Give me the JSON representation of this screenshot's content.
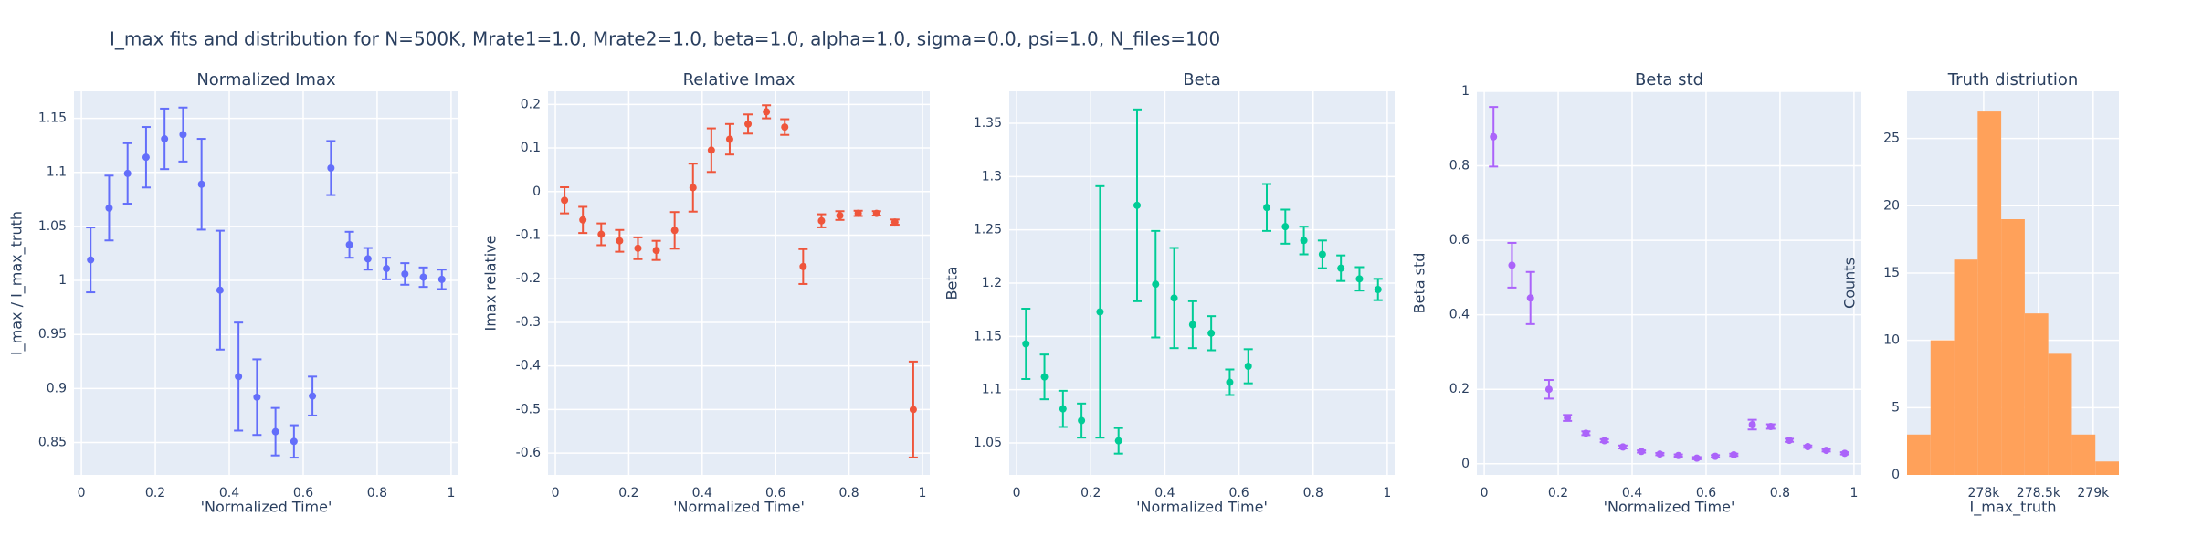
{
  "title": "I_max fits and distribution for N=500K, Mrate1=1.0, Mrate2=1.0, beta=1.0, alpha=1.0, sigma=0.0,  psi=1.0, N_files=100",
  "chart_data": [
    {
      "type": "scatter",
      "title": "Normalized Imax",
      "xlabel": "'Normalized Time'",
      "ylabel": "I_max / I_max_truth",
      "color": "#636efa",
      "x": [
        0.025,
        0.075,
        0.125,
        0.175,
        0.225,
        0.275,
        0.325,
        0.375,
        0.425,
        0.475,
        0.525,
        0.575,
        0.625,
        0.675,
        0.725,
        0.775,
        0.825,
        0.875,
        0.925,
        0.975
      ],
      "values": [
        1.019,
        1.067,
        1.099,
        1.114,
        1.131,
        1.135,
        1.089,
        0.991,
        0.911,
        0.892,
        0.86,
        0.851,
        0.893,
        1.104,
        1.033,
        1.02,
        1.011,
        1.006,
        1.003,
        1.001
      ],
      "error_y": [
        0.03,
        0.03,
        0.028,
        0.028,
        0.028,
        0.025,
        0.042,
        0.055,
        0.05,
        0.035,
        0.022,
        0.015,
        0.018,
        0.025,
        0.012,
        0.01,
        0.01,
        0.01,
        0.009,
        0.009
      ],
      "xlim": [
        -0.02,
        1.02
      ],
      "xticks": [
        0,
        0.2,
        0.4,
        0.6,
        0.8,
        1
      ],
      "ylim": [
        0.82,
        1.175
      ],
      "yticks": [
        0.85,
        0.9,
        0.95,
        1,
        1.05,
        1.1,
        1.15
      ],
      "grid": true
    },
    {
      "type": "scatter",
      "title": "Relative Imax",
      "xlabel": "'Normalized Time'",
      "ylabel": "Imax relative",
      "color": "#EF553B",
      "x": [
        0.025,
        0.075,
        0.125,
        0.175,
        0.225,
        0.275,
        0.325,
        0.375,
        0.425,
        0.475,
        0.525,
        0.575,
        0.625,
        0.675,
        0.725,
        0.775,
        0.825,
        0.875,
        0.925,
        0.975
      ],
      "values": [
        -0.02,
        -0.065,
        -0.098,
        -0.113,
        -0.13,
        -0.135,
        -0.089,
        0.009,
        0.095,
        0.12,
        0.155,
        0.183,
        0.148,
        -0.172,
        -0.067,
        -0.055,
        -0.05,
        -0.05,
        -0.07,
        -0.5
      ],
      "error_y": [
        0.03,
        0.03,
        0.025,
        0.025,
        0.025,
        0.022,
        0.042,
        0.055,
        0.05,
        0.035,
        0.022,
        0.015,
        0.018,
        0.04,
        0.015,
        0.01,
        0.006,
        0.005,
        0.006,
        0.11
      ],
      "xlim": [
        -0.02,
        1.02
      ],
      "xticks": [
        0,
        0.2,
        0.4,
        0.6,
        0.8,
        1
      ],
      "ylim": [
        -0.65,
        0.23
      ],
      "yticks": [
        -0.6,
        -0.5,
        -0.4,
        -0.3,
        -0.2,
        -0.1,
        0,
        0.1,
        0.2
      ],
      "grid": true
    },
    {
      "type": "scatter",
      "title": "Beta",
      "xlabel": "'Normalized Time'",
      "ylabel": "Beta",
      "color": "#00cc96",
      "x": [
        0.025,
        0.075,
        0.125,
        0.175,
        0.225,
        0.275,
        0.325,
        0.375,
        0.425,
        0.475,
        0.525,
        0.575,
        0.625,
        0.675,
        0.725,
        0.775,
        0.825,
        0.875,
        0.925,
        0.975
      ],
      "values": [
        1.143,
        1.112,
        1.082,
        1.071,
        1.173,
        1.052,
        1.273,
        1.199,
        1.186,
        1.161,
        1.153,
        1.107,
        1.122,
        1.271,
        1.253,
        1.24,
        1.227,
        1.214,
        1.204,
        1.194
      ],
      "error_y": [
        0.033,
        0.021,
        0.017,
        0.016,
        0.118,
        0.012,
        0.09,
        0.05,
        0.047,
        0.022,
        0.016,
        0.012,
        0.016,
        0.022,
        0.016,
        0.013,
        0.013,
        0.012,
        0.011,
        0.01
      ],
      "xlim": [
        -0.02,
        1.02
      ],
      "xticks": [
        0,
        0.2,
        0.4,
        0.6,
        0.8,
        1
      ],
      "ylim": [
        1.02,
        1.38
      ],
      "yticks": [
        1.05,
        1.1,
        1.15,
        1.2,
        1.25,
        1.3,
        1.35
      ],
      "grid": true
    },
    {
      "type": "scatter",
      "title": "Beta std",
      "xlabel": "'Normalized Time'",
      "ylabel": "Beta std",
      "color": "#ab63fa",
      "x": [
        0.025,
        0.075,
        0.125,
        0.175,
        0.225,
        0.275,
        0.325,
        0.375,
        0.425,
        0.475,
        0.525,
        0.575,
        0.625,
        0.675,
        0.725,
        0.775,
        0.825,
        0.875,
        0.925,
        0.975
      ],
      "values": [
        0.878,
        0.533,
        0.445,
        0.2,
        0.123,
        0.082,
        0.062,
        0.045,
        0.033,
        0.026,
        0.022,
        0.015,
        0.02,
        0.024,
        0.105,
        0.1,
        0.063,
        0.046,
        0.036,
        0.028
      ],
      "error_y": [
        0.08,
        0.06,
        0.07,
        0.025,
        0.008,
        0.005,
        0.004,
        0.004,
        0.003,
        0.003,
        0.003,
        0.003,
        0.003,
        0.003,
        0.013,
        0.006,
        0.004,
        0.003,
        0.003,
        0.003
      ],
      "xlim": [
        -0.02,
        1.02
      ],
      "xticks": [
        0,
        0.2,
        0.4,
        0.6,
        0.8,
        1
      ],
      "ylim": [
        -0.03,
        1.0
      ],
      "yticks": [
        0,
        0.2,
        0.4,
        0.6,
        0.8,
        1
      ],
      "grid": true
    },
    {
      "type": "histogram",
      "title": "Truth distriution",
      "xlabel": "I_max_truth",
      "ylabel": "Counts",
      "color": "#FFA15A",
      "bins": [
        277300,
        277515,
        277730,
        277945,
        278160,
        278375,
        278590,
        278805,
        279020,
        279235
      ],
      "counts": [
        3,
        10,
        16,
        27,
        19,
        12,
        9,
        3,
        1
      ],
      "xlim": [
        277300,
        279235
      ],
      "xticks": [
        {
          "value": 278000,
          "label": "278k"
        },
        {
          "value": 278500,
          "label": "278.5k"
        },
        {
          "value": 279000,
          "label": "279k"
        }
      ],
      "ylim": [
        0,
        28.5
      ],
      "yticks": [
        0,
        5,
        10,
        15,
        20,
        25
      ],
      "grid": true
    }
  ]
}
